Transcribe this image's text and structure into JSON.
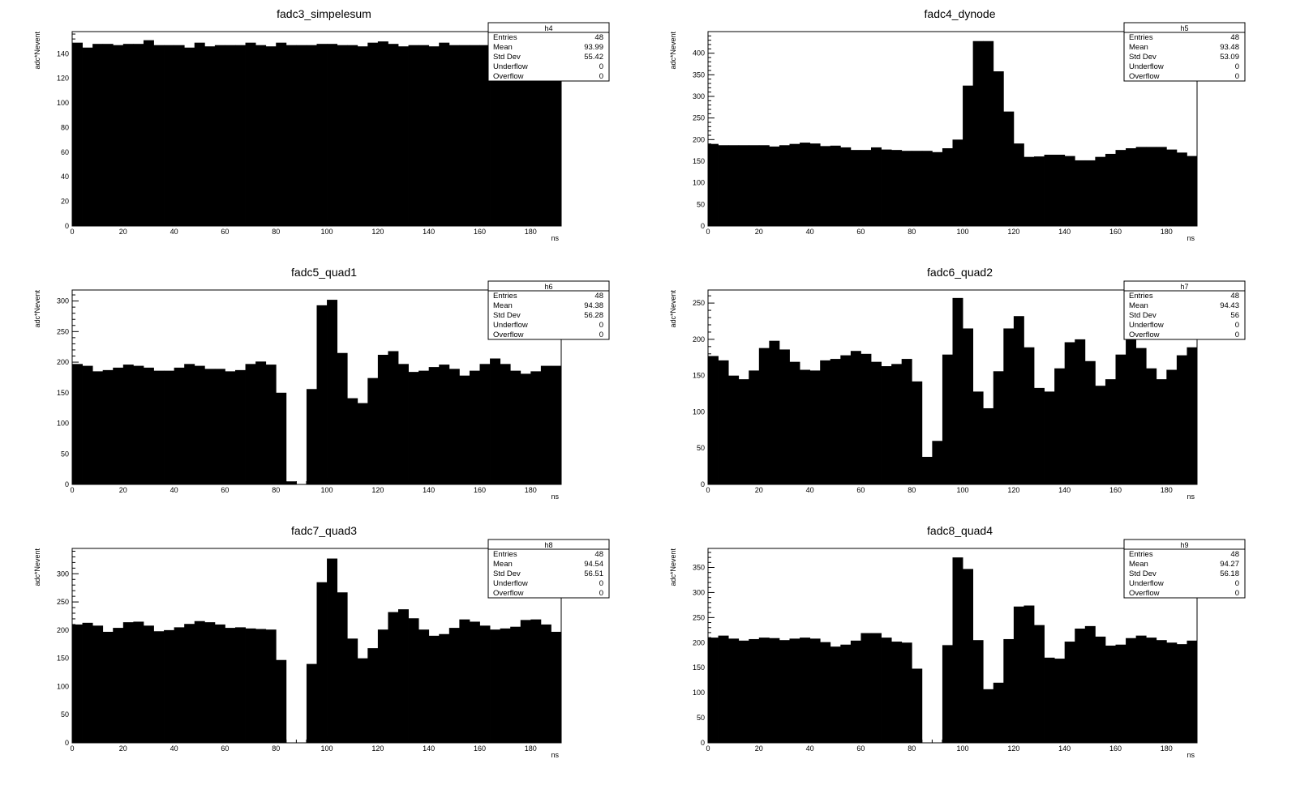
{
  "chart_data": [
    {
      "type": "bar",
      "title": "fadc3_simpelesum",
      "xlabel": "ns",
      "ylabel": "adc*Nevent",
      "xlim": [
        0,
        192
      ],
      "ylim": [
        0,
        158
      ],
      "xticks": [
        0,
        20,
        40,
        60,
        80,
        100,
        120,
        140,
        160,
        180
      ],
      "yticks": [
        0,
        20,
        40,
        60,
        80,
        100,
        120,
        140
      ],
      "bin_width": 4,
      "values": [
        149,
        145,
        148,
        148,
        147,
        148,
        148,
        151,
        147,
        147,
        147,
        145,
        149,
        146,
        147,
        147,
        147,
        149,
        147,
        146,
        149,
        147,
        147,
        147,
        148,
        148,
        147,
        147,
        146,
        149,
        150,
        148,
        146,
        147,
        147,
        146,
        149,
        147,
        147,
        147,
        147,
        147,
        147,
        147,
        147,
        147,
        147,
        147
      ],
      "stats": {
        "name": "h4",
        "entries_label": "Entries",
        "entries": "48",
        "mean_label": "Mean",
        "mean": "93.99",
        "stddev_label": "Std Dev",
        "stddev": "55.42",
        "underflow_label": "Underflow",
        "underflow": "0",
        "overflow_label": "Overflow",
        "overflow": "0"
      }
    },
    {
      "type": "bar",
      "title": "fadc4_dynode",
      "xlabel": "ns",
      "ylabel": "adc*Nevent",
      "xlim": [
        0,
        192
      ],
      "ylim": [
        0,
        450
      ],
      "xticks": [
        0,
        20,
        40,
        60,
        80,
        100,
        120,
        140,
        160,
        180
      ],
      "yticks": [
        0,
        50,
        100,
        150,
        200,
        250,
        300,
        350,
        400
      ],
      "bin_width": 4,
      "values": [
        190,
        187,
        187,
        187,
        187,
        187,
        184,
        187,
        190,
        193,
        191,
        185,
        186,
        182,
        176,
        176,
        182,
        177,
        176,
        174,
        174,
        174,
        171,
        180,
        200,
        325,
        428,
        428,
        358,
        265,
        191,
        160,
        161,
        165,
        165,
        162,
        152,
        152,
        160,
        167,
        176,
        180,
        183,
        183,
        183,
        177,
        170,
        162
      ],
      "stats": {
        "name": "h5",
        "entries_label": "Entries",
        "entries": "48",
        "mean_label": "Mean",
        "mean": "93.48",
        "stddev_label": "Std Dev",
        "stddev": "53.09",
        "underflow_label": "Underflow",
        "underflow": "0",
        "overflow_label": "Overflow",
        "overflow": "0"
      }
    },
    {
      "type": "bar",
      "title": "fadc5_quad1",
      "xlabel": "ns",
      "ylabel": "adc*Nevent",
      "xlim": [
        0,
        192
      ],
      "ylim": [
        0,
        318
      ],
      "xticks": [
        0,
        20,
        40,
        60,
        80,
        100,
        120,
        140,
        160,
        180
      ],
      "yticks": [
        0,
        50,
        100,
        150,
        200,
        250,
        300
      ],
      "bin_width": 4,
      "values": [
        197,
        194,
        185,
        187,
        191,
        196,
        194,
        191,
        186,
        186,
        191,
        197,
        194,
        189,
        189,
        185,
        187,
        197,
        201,
        196,
        150,
        5,
        0,
        156,
        293,
        302,
        215,
        141,
        133,
        174,
        212,
        218,
        197,
        184,
        186,
        192,
        196,
        189,
        178,
        186,
        197,
        206,
        197,
        186,
        181,
        185,
        194,
        194
      ],
      "stats": {
        "name": "h6",
        "entries_label": "Entries",
        "entries": "48",
        "mean_label": "Mean",
        "mean": "94.38",
        "stddev_label": "Std Dev",
        "stddev": "56.28",
        "underflow_label": "Underflow",
        "underflow": "0",
        "overflow_label": "Overflow",
        "overflow": "0"
      }
    },
    {
      "type": "bar",
      "title": "fadc6_quad2",
      "xlabel": "ns",
      "ylabel": "adc*Nevent",
      "xlim": [
        0,
        192
      ],
      "ylim": [
        0,
        268
      ],
      "xticks": [
        0,
        20,
        40,
        60,
        80,
        100,
        120,
        140,
        160,
        180
      ],
      "yticks": [
        0,
        50,
        100,
        150,
        200,
        250
      ],
      "bin_width": 4,
      "values": [
        177,
        171,
        150,
        145,
        157,
        188,
        198,
        186,
        169,
        158,
        157,
        171,
        173,
        178,
        184,
        180,
        169,
        163,
        166,
        173,
        142,
        38,
        60,
        179,
        257,
        215,
        128,
        105,
        156,
        215,
        232,
        189,
        133,
        128,
        160,
        196,
        200,
        170,
        136,
        145,
        179,
        207,
        188,
        160,
        145,
        158,
        178,
        189
      ],
      "stats": {
        "name": "h7",
        "entries_label": "Entries",
        "entries": "48",
        "mean_label": "Mean",
        "mean": "94.43",
        "stddev_label": "Std Dev",
        "stddev": "56",
        "underflow_label": "Underflow",
        "underflow": "0",
        "overflow_label": "Overflow",
        "overflow": "0"
      }
    },
    {
      "type": "bar",
      "title": "fadc7_quad3",
      "xlabel": "ns",
      "ylabel": "adc*Nevent",
      "xlim": [
        0,
        192
      ],
      "ylim": [
        0,
        345
      ],
      "xticks": [
        0,
        20,
        40,
        60,
        80,
        100,
        120,
        140,
        160,
        180
      ],
      "yticks": [
        0,
        50,
        100,
        150,
        200,
        250,
        300
      ],
      "bin_width": 4,
      "values": [
        210,
        213,
        208,
        197,
        204,
        214,
        215,
        208,
        198,
        200,
        205,
        211,
        216,
        214,
        210,
        204,
        205,
        203,
        202,
        201,
        147,
        0,
        0,
        140,
        285,
        327,
        267,
        185,
        150,
        168,
        201,
        232,
        237,
        221,
        201,
        190,
        193,
        204,
        219,
        215,
        208,
        201,
        203,
        206,
        218,
        219,
        210,
        197
      ],
      "stats": {
        "name": "h8",
        "entries_label": "Entries",
        "entries": "48",
        "mean_label": "Mean",
        "mean": "94.54",
        "stddev_label": "Std Dev",
        "stddev": "56.51",
        "underflow_label": "Underflow",
        "underflow": "0",
        "overflow_label": "Overflow",
        "overflow": "0"
      }
    },
    {
      "type": "bar",
      "title": "fadc8_quad4",
      "xlabel": "ns",
      "ylabel": "adc*Nevent",
      "xlim": [
        0,
        192
      ],
      "ylim": [
        0,
        388
      ],
      "xticks": [
        0,
        20,
        40,
        60,
        80,
        100,
        120,
        140,
        160,
        180
      ],
      "yticks": [
        0,
        50,
        100,
        150,
        200,
        250,
        300,
        350
      ],
      "bin_width": 4,
      "values": [
        210,
        214,
        208,
        204,
        207,
        210,
        209,
        205,
        208,
        210,
        208,
        201,
        192,
        196,
        204,
        219,
        219,
        210,
        202,
        200,
        148,
        0,
        0,
        195,
        370,
        347,
        205,
        107,
        120,
        207,
        272,
        274,
        235,
        170,
        168,
        202,
        228,
        233,
        212,
        194,
        196,
        209,
        214,
        210,
        205,
        200,
        197,
        204
      ],
      "stats": {
        "name": "h9",
        "entries_label": "Entries",
        "entries": "48",
        "mean_label": "Mean",
        "mean": "94.27",
        "stddev_label": "Std Dev",
        "stddev": "56.18",
        "underflow_label": "Underflow",
        "underflow": "0",
        "overflow_label": "Overflow",
        "overflow": "0"
      }
    }
  ]
}
